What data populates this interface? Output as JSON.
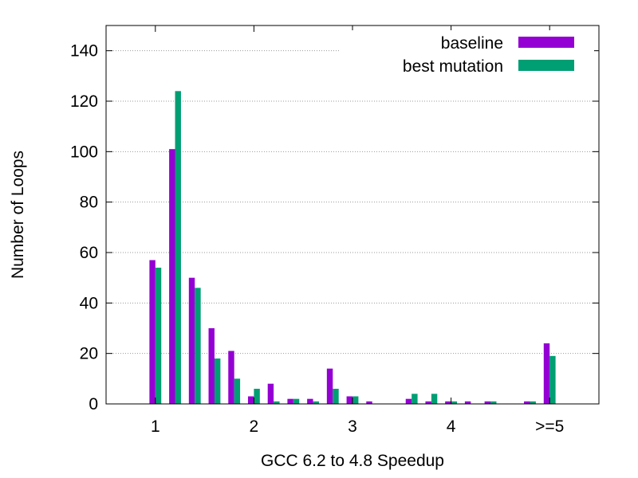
{
  "chart_data": {
    "type": "bar",
    "xlabel": "GCC 6.2 to 4.8 Speedup",
    "ylabel": "Number of Loops",
    "ylim": [
      0,
      150
    ],
    "yticks": [
      0,
      20,
      40,
      60,
      80,
      100,
      120,
      140
    ],
    "xlim": [
      0.5,
      5.5
    ],
    "xticks": [
      {
        "x": 1,
        "label": "1"
      },
      {
        "x": 2,
        "label": "2"
      },
      {
        "x": 3,
        "label": "3"
      },
      {
        "x": 4,
        "label": "4"
      },
      {
        "x": 5,
        "label": ">=5"
      }
    ],
    "grid": "horizontal dotted",
    "legend_position": "top-right",
    "bin_width": 0.2,
    "x": [
      0.8,
      1.0,
      1.2,
      1.4,
      1.6,
      1.8,
      2.0,
      2.2,
      2.4,
      2.6,
      2.8,
      3.0,
      3.2,
      3.4,
      3.6,
      3.8,
      4.0,
      4.2,
      4.4,
      4.6,
      4.8,
      5.0
    ],
    "series": [
      {
        "name": "baseline",
        "color": "#9400d3",
        "values": [
          0,
          57,
          101,
          50,
          30,
          21,
          3,
          8,
          2,
          2,
          14,
          3,
          1,
          0,
          2,
          1,
          1,
          1,
          1,
          0,
          1,
          24
        ]
      },
      {
        "name": "best mutation",
        "color": "#009e73",
        "values": [
          0,
          54,
          124,
          46,
          18,
          10,
          6,
          1,
          2,
          1,
          6,
          3,
          0,
          0,
          4,
          4,
          1,
          0,
          1,
          0,
          1,
          19
        ]
      }
    ]
  }
}
